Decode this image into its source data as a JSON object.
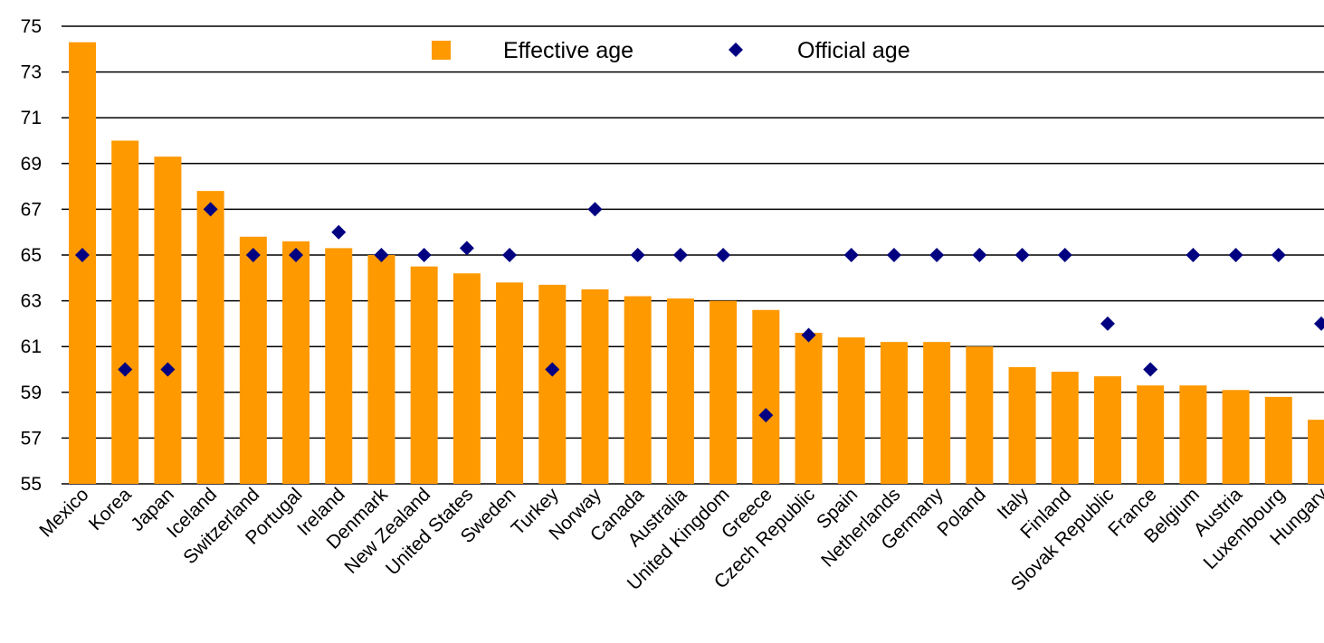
{
  "chart_data": {
    "type": "bar",
    "categories": [
      "Mexico",
      "Korea",
      "Japan",
      "Iceland",
      "Switzerland",
      "Portugal",
      "Ireland",
      "Denmark",
      "New Zealand",
      "United States",
      "Sweden",
      "Turkey",
      "Norway",
      "Canada",
      "Australia",
      "United Kingdom",
      "Greece",
      "Czech Republic",
      "Spain",
      "Netherlands",
      "Germany",
      "Poland",
      "Italy",
      "Finland",
      "Slovak Republic",
      "France",
      "Belgium",
      "Austria",
      "Luxembourg",
      "Hungary"
    ],
    "series": [
      {
        "name": "Effective age",
        "kind": "bar",
        "color": "#FF9900",
        "values": [
          74.3,
          70.0,
          69.3,
          67.8,
          65.8,
          65.6,
          65.3,
          65.0,
          64.5,
          64.2,
          63.8,
          63.7,
          63.5,
          63.2,
          63.1,
          63.0,
          62.6,
          61.6,
          61.4,
          61.2,
          61.2,
          61.0,
          60.1,
          59.9,
          59.7,
          59.3,
          59.3,
          59.1,
          58.8,
          57.8
        ]
      },
      {
        "name": "Official age",
        "kind": "marker",
        "color": "#000080",
        "values": [
          65,
          60,
          60,
          67,
          65,
          65,
          66,
          65,
          65,
          65.3,
          65,
          60,
          67,
          65,
          65,
          65,
          58,
          61.5,
          65,
          65,
          65,
          65,
          65,
          65,
          62,
          60,
          65,
          65,
          65,
          62
        ]
      }
    ],
    "yticks": [
      "55",
      "57",
      "59",
      "61",
      "63",
      "65",
      "67",
      "69",
      "71",
      "73",
      "75"
    ],
    "ylim": [
      55,
      75
    ],
    "grid": true,
    "legend_position": "top-center"
  }
}
